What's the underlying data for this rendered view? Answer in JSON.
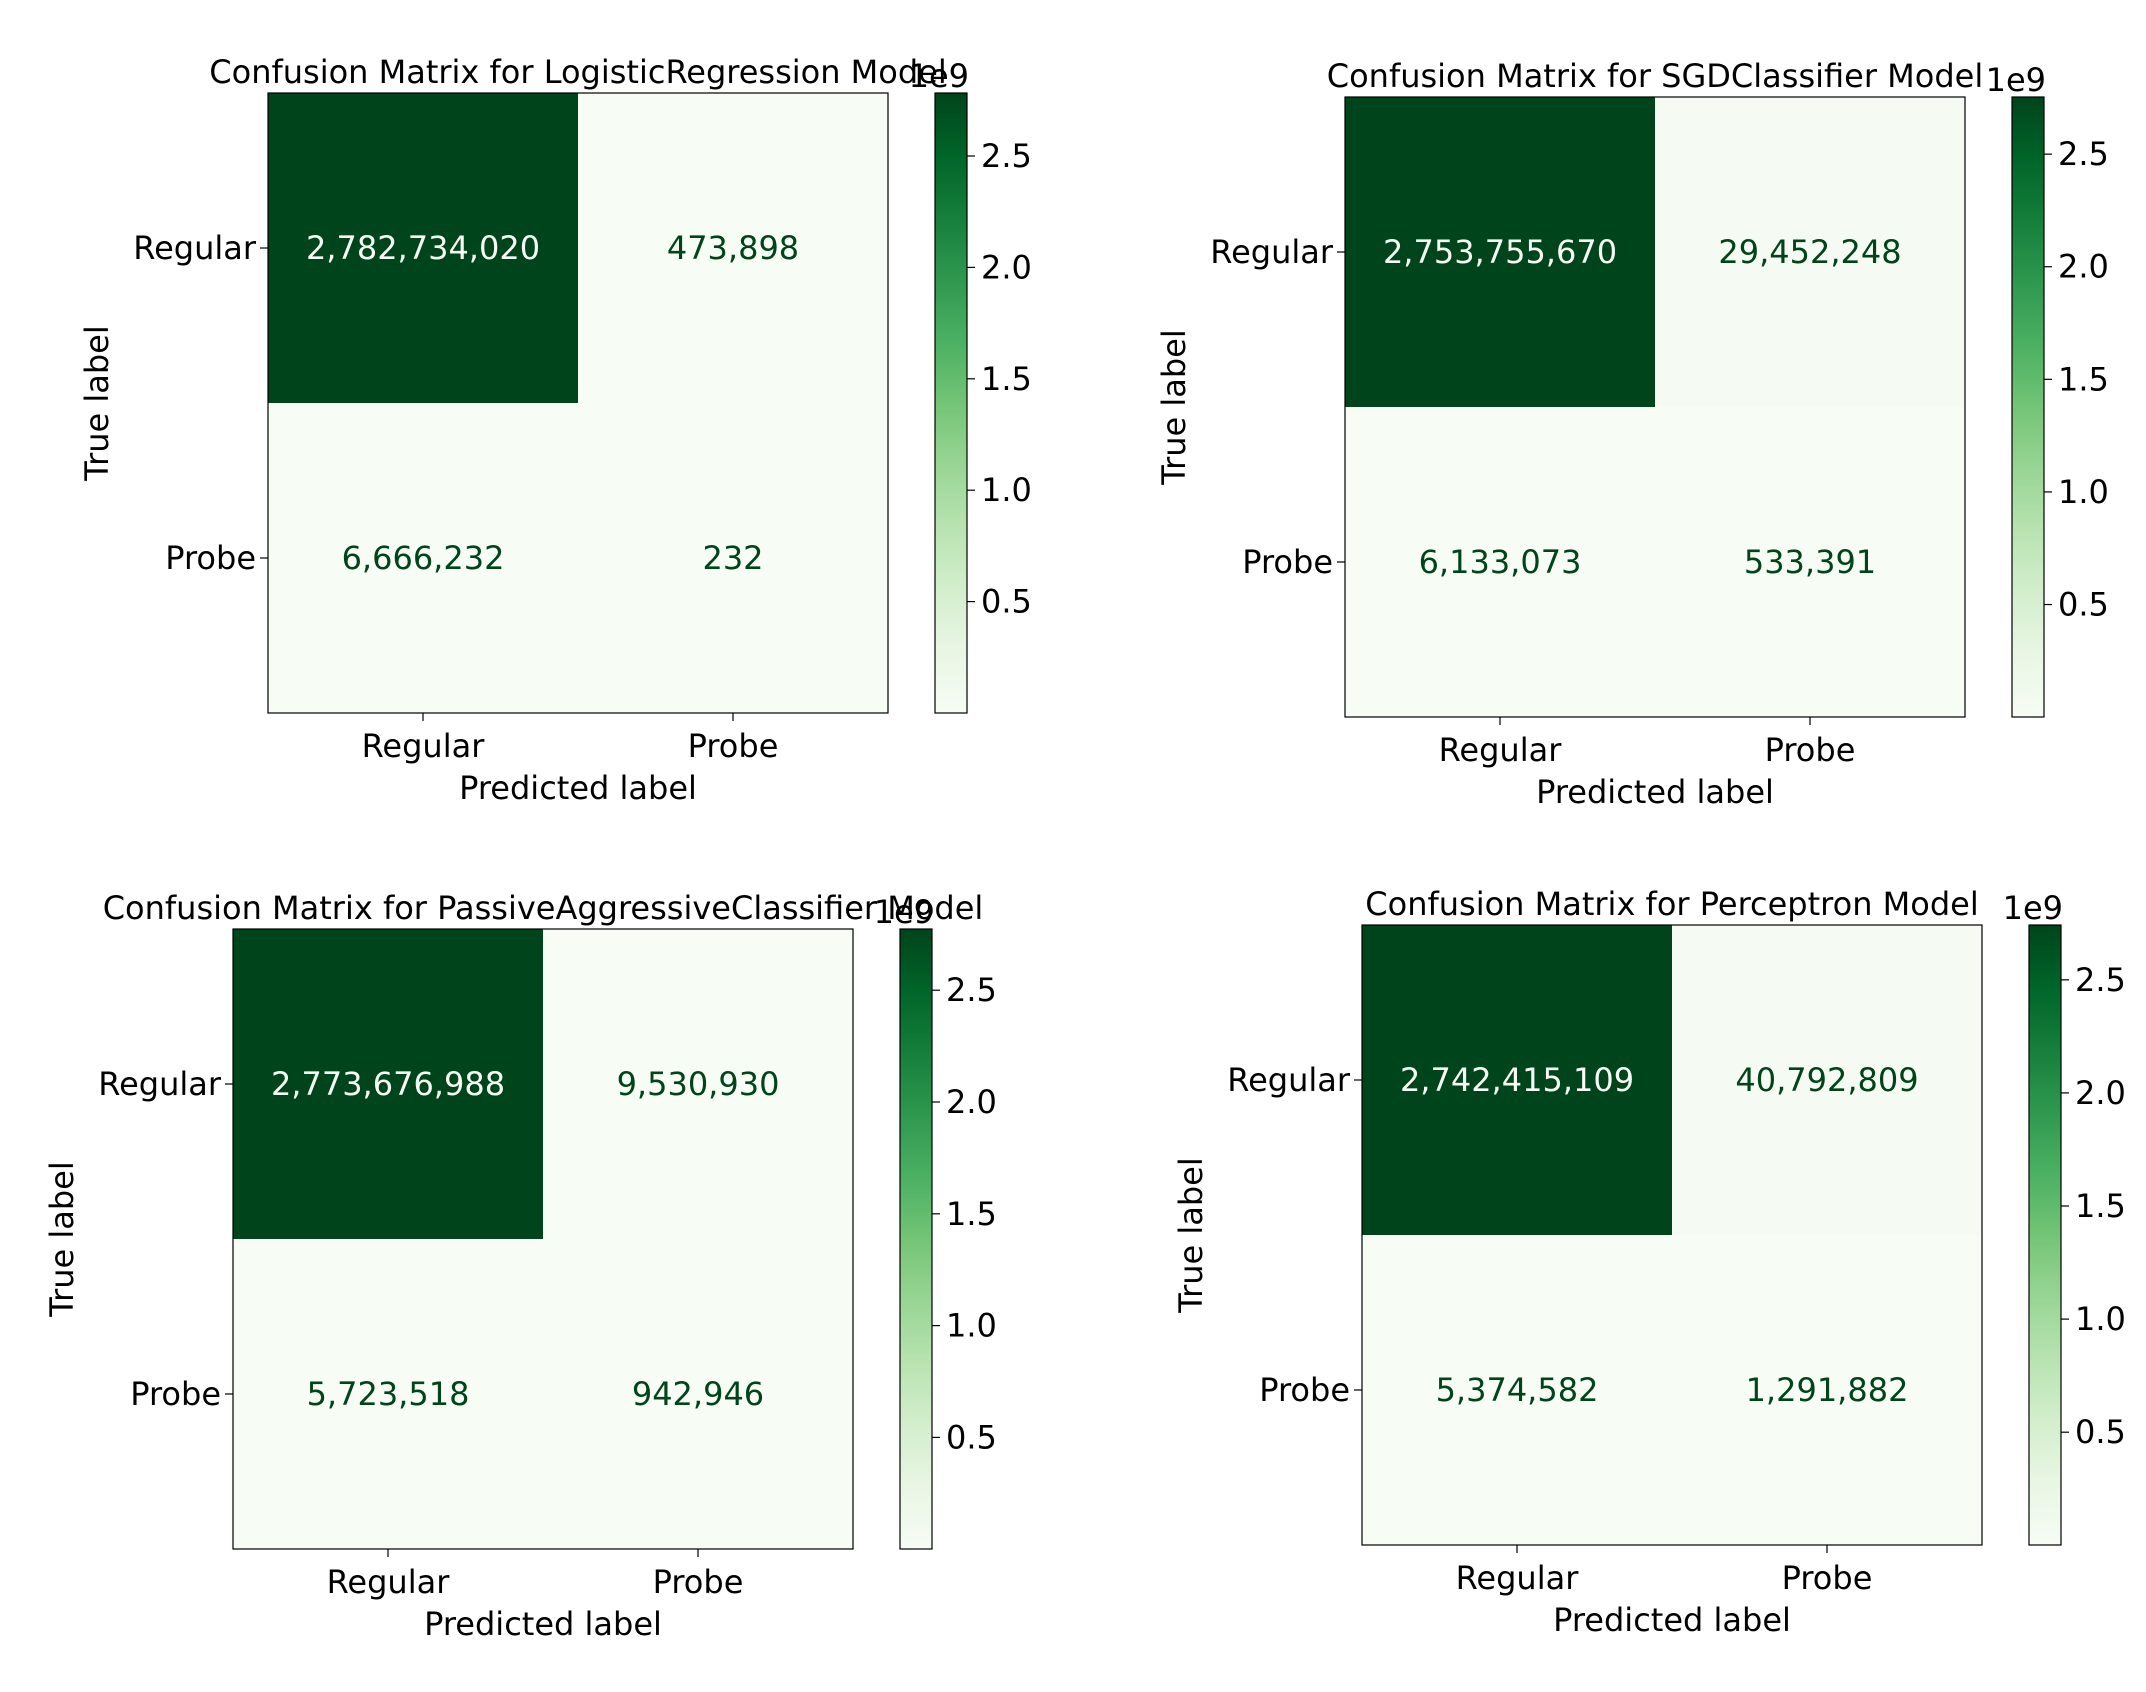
{
  "chart_data": [
    {
      "type": "heatmap",
      "title": "Confusion Matrix for LogisticRegression Model",
      "xlabel": "Predicted label",
      "ylabel": "True label",
      "x_categories": [
        "Regular",
        "Probe"
      ],
      "y_categories": [
        "Regular",
        "Probe"
      ],
      "values": [
        [
          2782734020,
          473898
        ],
        [
          6666232,
          232
        ]
      ],
      "cell_labels": [
        [
          "2,782,734,020",
          "473,898"
        ],
        [
          "6,666,232",
          "232"
        ]
      ],
      "colorbar": {
        "ticks": [
          "0.5",
          "1.0",
          "1.5",
          "2.0",
          "2.5"
        ],
        "tick_values": [
          0.5,
          1.0,
          1.5,
          2.0,
          2.5
        ],
        "offset_text": "1e9",
        "range": [
          232,
          2782734020
        ]
      }
    },
    {
      "type": "heatmap",
      "title": "Confusion Matrix for SGDClassifier Model",
      "xlabel": "Predicted label",
      "ylabel": "True label",
      "x_categories": [
        "Regular",
        "Probe"
      ],
      "y_categories": [
        "Regular",
        "Probe"
      ],
      "values": [
        [
          2753755670,
          29452248
        ],
        [
          6133073,
          533391
        ]
      ],
      "cell_labels": [
        [
          "2,753,755,670",
          "29,452,248"
        ],
        [
          "6,133,073",
          "533,391"
        ]
      ],
      "colorbar": {
        "ticks": [
          "0.5",
          "1.0",
          "1.5",
          "2.0",
          "2.5"
        ],
        "tick_values": [
          0.5,
          1.0,
          1.5,
          2.0,
          2.5
        ],
        "offset_text": "1e9",
        "range": [
          533391,
          2753755670
        ]
      }
    },
    {
      "type": "heatmap",
      "title": "Confusion Matrix for PassiveAggressiveClassifier Model",
      "xlabel": "Predicted label",
      "ylabel": "True label",
      "x_categories": [
        "Regular",
        "Probe"
      ],
      "y_categories": [
        "Regular",
        "Probe"
      ],
      "values": [
        [
          2773676988,
          9530930
        ],
        [
          5723518,
          942946
        ]
      ],
      "cell_labels": [
        [
          "2,773,676,988",
          "9,530,930"
        ],
        [
          "5,723,518",
          "942,946"
        ]
      ],
      "colorbar": {
        "ticks": [
          "0.5",
          "1.0",
          "1.5",
          "2.0",
          "2.5"
        ],
        "tick_values": [
          0.5,
          1.0,
          1.5,
          2.0,
          2.5
        ],
        "offset_text": "1e9",
        "range": [
          942946,
          2773676988
        ]
      }
    },
    {
      "type": "heatmap",
      "title": "Confusion Matrix for Perceptron Model",
      "xlabel": "Predicted label",
      "ylabel": "True label",
      "x_categories": [
        "Regular",
        "Probe"
      ],
      "y_categories": [
        "Regular",
        "Probe"
      ],
      "values": [
        [
          2742415109,
          40792809
        ],
        [
          5374582,
          1291882
        ]
      ],
      "cell_labels": [
        [
          "2,742,415,109",
          "40,792,809"
        ],
        [
          "5,374,582",
          "1,291,882"
        ]
      ],
      "colorbar": {
        "ticks": [
          "0.5",
          "1.0",
          "1.5",
          "2.0",
          "2.5"
        ],
        "tick_values": [
          0.5,
          1.0,
          1.5,
          2.0,
          2.5
        ],
        "offset_text": "1e9",
        "range": [
          1291882,
          2742415109
        ]
      }
    }
  ],
  "colors": {
    "cmap": "Greens",
    "high": "#00441b",
    "low": "#f7fcf5",
    "text_dark_cell": "#f7fcf5",
    "text_light_cell": "#00441b"
  }
}
